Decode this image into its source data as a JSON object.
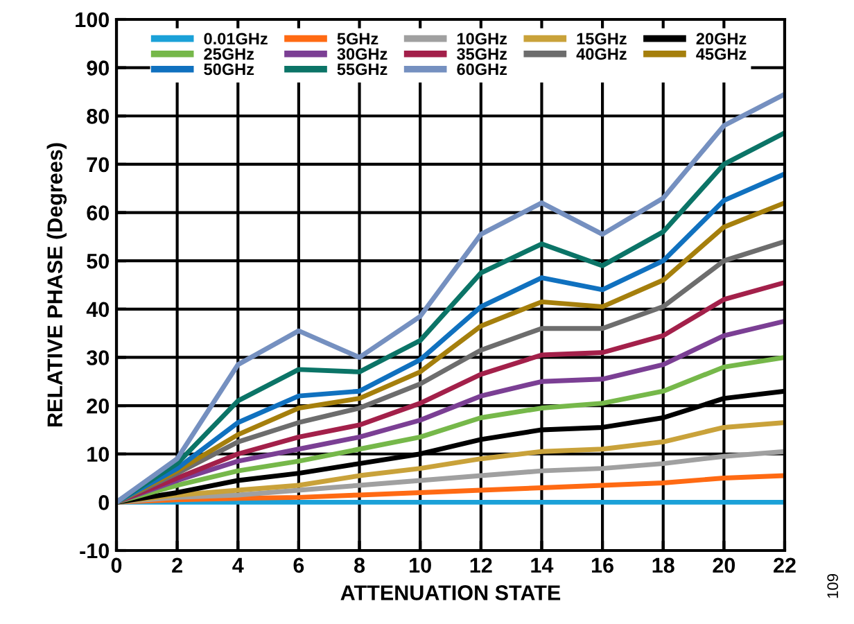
{
  "chart_data": {
    "type": "line",
    "xlabel": "ATTENUATION STATE",
    "ylabel": "RELATIVE PHASE (Degrees)",
    "x": [
      0,
      2,
      4,
      6,
      8,
      10,
      12,
      14,
      16,
      18,
      20,
      22
    ],
    "xlim": [
      0,
      22
    ],
    "xticks": [
      0,
      2,
      4,
      6,
      8,
      10,
      12,
      14,
      16,
      18,
      20,
      22
    ],
    "ylim": [
      -10,
      100
    ],
    "yticks": [
      -10,
      0,
      10,
      20,
      30,
      40,
      50,
      60,
      70,
      80,
      90,
      100
    ],
    "grid": true,
    "legend": "top",
    "line_style": "solid",
    "marker": "none",
    "annotations": [
      "109"
    ],
    "series": [
      {
        "name": "0.01GHz",
        "color": "#1ba1d8",
        "values": [
          0,
          0,
          0,
          0,
          0,
          0,
          0,
          0,
          0,
          0,
          0,
          0
        ]
      },
      {
        "name": "5GHz",
        "color": "#ff6a13",
        "values": [
          0,
          0.5,
          0.8,
          1,
          1.5,
          2,
          2.5,
          3,
          3.5,
          4,
          5,
          5.5
        ]
      },
      {
        "name": "10GHz",
        "color": "#a0a0a0",
        "values": [
          0,
          1,
          1.5,
          2.5,
          3.5,
          4.5,
          5.5,
          6.5,
          7,
          8,
          9.5,
          10.5
        ]
      },
      {
        "name": "15GHz",
        "color": "#c9a23a",
        "values": [
          0,
          1.5,
          2.5,
          3.5,
          5.5,
          7,
          9,
          10.5,
          11,
          12.5,
          15.5,
          16.5
        ]
      },
      {
        "name": "20GHz",
        "color": "#000000",
        "values": [
          0,
          2,
          4.5,
          6,
          8,
          10,
          13,
          15,
          15.5,
          17.5,
          21.5,
          23
        ]
      },
      {
        "name": "25GHz",
        "color": "#76b84a",
        "values": [
          0,
          3.5,
          6.5,
          8.5,
          11,
          13.5,
          17.5,
          19.5,
          20.5,
          23,
          28,
          30
        ]
      },
      {
        "name": "30GHz",
        "color": "#7b3f94",
        "values": [
          0,
          4.5,
          8.5,
          11,
          13.5,
          17,
          22,
          25,
          25.5,
          28.5,
          34.5,
          37.5
        ]
      },
      {
        "name": "35GHz",
        "color": "#a3204a",
        "values": [
          0,
          5,
          10,
          13.5,
          16,
          20.5,
          26.5,
          30.5,
          31,
          34.5,
          42,
          45.5
        ]
      },
      {
        "name": "40GHz",
        "color": "#6d6d6d",
        "values": [
          0,
          6,
          12.5,
          16.5,
          19.5,
          24.5,
          31.5,
          36,
          36,
          40.5,
          50,
          54
        ]
      },
      {
        "name": "45GHz",
        "color": "#a57f0c",
        "values": [
          0,
          6.5,
          14,
          19.5,
          21.5,
          27,
          36.5,
          41.5,
          40.5,
          46,
          57,
          62
        ]
      },
      {
        "name": "50GHz",
        "color": "#1071bf",
        "values": [
          0,
          7,
          16.5,
          22,
          23,
          29.5,
          40.5,
          46.5,
          44,
          50,
          62.5,
          68
        ]
      },
      {
        "name": "55GHz",
        "color": "#0b7467",
        "values": [
          0,
          8,
          21,
          27.5,
          27,
          33.5,
          47.5,
          53.5,
          49,
          56,
          70,
          76.5
        ]
      },
      {
        "name": "60GHz",
        "color": "#7590c0",
        "values": [
          0,
          9,
          28.5,
          35.5,
          30,
          38.5,
          55.5,
          62,
          55.5,
          63,
          78,
          84.5
        ]
      }
    ]
  }
}
